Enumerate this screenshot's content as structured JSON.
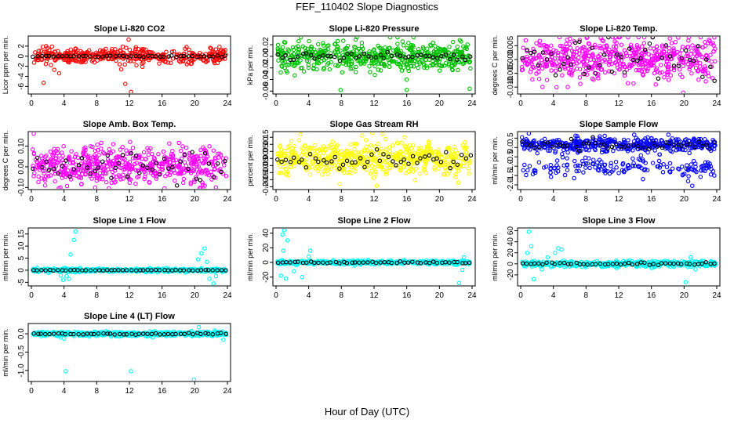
{
  "figure": {
    "title": "FEF_110402  Slope Diagnostics",
    "xlabel": "Hour of Day (UTC)"
  },
  "chart_data": [
    {
      "type": "scatter",
      "title": "Slope Li-820 CO2",
      "ylabel": "Licor ppm per min.",
      "color": "#ff0000",
      "xlim": [
        0,
        24
      ],
      "xticks": [
        0,
        4,
        8,
        12,
        16,
        20,
        24
      ],
      "ylim": [
        -7.5,
        4
      ],
      "yticks": [
        -6,
        -4,
        -2,
        0,
        2
      ],
      "ytick_labels": [
        "-6",
        "-4",
        "-2",
        "0",
        "2"
      ],
      "base_mean": 0,
      "noise": 0.7,
      "n_points": 420,
      "n_hourly": 48,
      "hourly_noise": 0.08,
      "outliers": [
        [
          1.5,
          -5.3
        ],
        [
          1.8,
          2.0
        ],
        [
          2.2,
          1.2
        ],
        [
          2.8,
          -2.7
        ],
        [
          3.4,
          -3.4
        ],
        [
          5.4,
          1.4
        ],
        [
          10.8,
          -1.6
        ],
        [
          11.0,
          -2.6
        ],
        [
          11.5,
          -5.5
        ],
        [
          11.9,
          3.3
        ],
        [
          12.2,
          -7.1
        ],
        [
          12.8,
          1.8
        ],
        [
          13.1,
          1.4
        ],
        [
          13.6,
          -2.1
        ]
      ]
    },
    {
      "type": "scatter",
      "title": "Slope Li-820 Pressure",
      "ylabel": "kPa per min.",
      "color": "#00c000",
      "xlim": [
        0,
        24
      ],
      "xticks": [
        0,
        4,
        8,
        12,
        16,
        20,
        24
      ],
      "ylim": [
        -0.065,
        0.035
      ],
      "yticks": [
        -0.06,
        -0.04,
        -0.02,
        0,
        0.02
      ],
      "ytick_labels": [
        "-0.06",
        "-0.04",
        "-0.02",
        "0.00",
        "0.02"
      ],
      "base_mean": 0,
      "noise": 0.012,
      "n_points": 560,
      "n_hourly": 48,
      "hourly_noise": 0.003,
      "outliers": [
        [
          7.9,
          -0.058
        ],
        [
          12.1,
          -0.032
        ],
        [
          16.0,
          -0.058
        ],
        [
          23.7,
          -0.056
        ],
        [
          22.5,
          0.028
        ]
      ]
    },
    {
      "type": "scatter",
      "title": "Slope Li-820 Temp.",
      "ylabel": "degrees C per min.",
      "color": "#ff00ff",
      "xlim": [
        0,
        24
      ],
      "xticks": [
        0,
        4,
        8,
        12,
        16,
        20,
        24
      ],
      "ylim": [
        -0.0125,
        0.0085
      ],
      "yticks": [
        -0.01,
        -0.005,
        0,
        0.005
      ],
      "ytick_labels": [
        "-0.010",
        "-0.005",
        "0.000",
        "0.005"
      ],
      "base_mean": 0,
      "noise": 0.004,
      "n_points": 560,
      "n_hourly": 48,
      "hourly_noise": 0.004,
      "outliers": [
        [
          23.7,
          0.008
        ],
        [
          19.9,
          -0.012
        ]
      ]
    },
    {
      "type": "scatter",
      "title": "Slope Amb. Box Temp.",
      "ylabel": "degrees C per min.",
      "color": "#ff00ff",
      "xlim": [
        0,
        24
      ],
      "xticks": [
        0,
        4,
        8,
        12,
        16,
        20,
        24
      ],
      "ylim": [
        -0.11,
        0.17
      ],
      "yticks": [
        -0.1,
        0,
        0.1
      ],
      "ytick_labels": [
        "-0.10",
        "0.00",
        "0.10"
      ],
      "base_mean": 0.01,
      "noise": 0.045,
      "n_points": 560,
      "n_hourly": 48,
      "hourly_noise": 0.045,
      "outliers": [
        [
          0.3,
          0.16
        ],
        [
          7.8,
          -0.1
        ]
      ]
    },
    {
      "type": "scatter",
      "title": "Slope Gas Stream RH",
      "ylabel": "percent per min.",
      "color": "#ffff00",
      "xlim": [
        0,
        24
      ],
      "xticks": [
        0,
        4,
        8,
        12,
        16,
        20,
        24
      ],
      "ylim": [
        -0.22,
        0.19
      ],
      "yticks": [
        -0.2,
        -0.15,
        -0.1,
        -0.05,
        0,
        0.05,
        0.1,
        0.15
      ],
      "ytick_labels": [
        "-0.20",
        "-0.15",
        "-0.10",
        "-0.05",
        "0.00",
        "0.05",
        "0.10",
        "0.15"
      ],
      "base_mean": 0,
      "noise": 0.06,
      "n_points": 560,
      "n_hourly": 48,
      "hourly_noise": 0.04,
      "outliers": [
        [
          3.0,
          0.17
        ],
        [
          7.8,
          -0.18
        ],
        [
          22.3,
          -0.17
        ]
      ]
    },
    {
      "type": "scatter",
      "title": "Slope Sample Flow",
      "ylabel": "ml/min per min.",
      "color": "#0000ff",
      "xlim": [
        0,
        24
      ],
      "xticks": [
        0,
        4,
        8,
        12,
        16,
        20,
        24
      ],
      "ylim": [
        -2.25,
        0.85
      ],
      "yticks": [
        -2,
        -1.5,
        -1,
        -0.5,
        0,
        0.5
      ],
      "ytick_labels": [
        "-2.0",
        "-1.5",
        "-1.0",
        "-0.5",
        "0.0",
        "0.5"
      ],
      "base_mean": 0.15,
      "noise": 0.18,
      "n_points": 440,
      "n_hourly": 48,
      "hourly_noise": 0.15,
      "band_mean": -1.05,
      "band_noise": 0.25,
      "n_band": 160,
      "outliers": [
        [
          20.5,
          -1.8
        ],
        [
          21.0,
          -2.05
        ],
        [
          1.0,
          0.75
        ],
        [
          23.7,
          -1.5
        ]
      ]
    },
    {
      "type": "scatter",
      "title": "Slope Line 1 Flow",
      "ylabel": "ml/min per min.",
      "color": "#00ffff",
      "xlim": [
        0,
        24
      ],
      "xticks": [
        0,
        4,
        8,
        12,
        16,
        20,
        24
      ],
      "ylim": [
        -6.5,
        17.5
      ],
      "yticks": [
        -5,
        0,
        5,
        10,
        15
      ],
      "ytick_labels": [
        "-5",
        "0",
        "5",
        "10",
        "15"
      ],
      "base_mean": 0,
      "noise": 0.35,
      "n_points": 520,
      "n_hourly": 48,
      "hourly_noise": 0.05,
      "outliers": [
        [
          3.9,
          -4.0
        ],
        [
          4.3,
          -2.5
        ],
        [
          4.8,
          6.5
        ],
        [
          5.2,
          12.5
        ],
        [
          5.4,
          16.0
        ],
        [
          4.6,
          -3.5
        ],
        [
          3.6,
          -2.2
        ],
        [
          20.4,
          4.5
        ],
        [
          20.8,
          7.0
        ],
        [
          21.2,
          9.0
        ],
        [
          21.8,
          -3.5
        ],
        [
          22.3,
          -5.5
        ],
        [
          22.6,
          -2.5
        ],
        [
          21.5,
          3.5
        ]
      ]
    },
    {
      "type": "scatter",
      "title": "Slope Line 2 Flow",
      "ylabel": "ml/min per min.",
      "color": "#00ffff",
      "xlim": [
        0,
        24
      ],
      "xticks": [
        0,
        4,
        8,
        12,
        16,
        20,
        24
      ],
      "ylim": [
        -32,
        47
      ],
      "yticks": [
        -20,
        0,
        20,
        40
      ],
      "ytick_labels": [
        "-20",
        "0",
        "20",
        "40"
      ],
      "base_mean": 0,
      "noise": 1.2,
      "n_points": 520,
      "n_hourly": 48,
      "hourly_noise": 0.6,
      "outliers": [
        [
          0.8,
          38.0
        ],
        [
          1.0,
          44.0
        ],
        [
          1.4,
          30.0
        ],
        [
          1.2,
          -22.0
        ],
        [
          0.6,
          -18.0
        ],
        [
          2.2,
          -12.0
        ],
        [
          3.2,
          -20.0
        ],
        [
          4.2,
          16.0
        ],
        [
          4.0,
          8.0
        ],
        [
          0.9,
          16.0
        ],
        [
          23.0,
          7.0
        ],
        [
          22.4,
          -28.0
        ],
        [
          22.8,
          -10.0
        ],
        [
          21.8,
          -3.0
        ]
      ]
    },
    {
      "type": "scatter",
      "title": "Slope Line 3 Flow",
      "ylabel": "ml/min per min.",
      "color": "#00ffff",
      "xlim": [
        0,
        24
      ],
      "xticks": [
        0,
        4,
        8,
        12,
        16,
        20,
        24
      ],
      "ylim": [
        -40,
        65
      ],
      "yticks": [
        -20,
        0,
        20,
        40,
        60
      ],
      "ytick_labels": [
        "-20",
        "0",
        "20",
        "40",
        "60"
      ],
      "base_mean": 0,
      "noise": 2.5,
      "n_points": 520,
      "n_hourly": 48,
      "hourly_noise": 1.0,
      "outliers": [
        [
          1.0,
          58.0
        ],
        [
          1.3,
          32.0
        ],
        [
          0.8,
          20.0
        ],
        [
          1.6,
          -28.0
        ],
        [
          3.3,
          12.0
        ],
        [
          4.2,
          20.0
        ],
        [
          4.6,
          28.0
        ],
        [
          5.0,
          26.0
        ],
        [
          2.6,
          -10.0
        ],
        [
          20.2,
          -33.0
        ],
        [
          20.8,
          12.0
        ],
        [
          21.4,
          -10.0
        ],
        [
          23.3,
          5.0
        ]
      ]
    },
    {
      "type": "scatter",
      "title": "Slope Line 4 (LT) Flow",
      "ylabel": "ml/min per min.",
      "color": "#00ffff",
      "xlim": [
        0,
        24
      ],
      "xticks": [
        0,
        4,
        8,
        12,
        16,
        20,
        24
      ],
      "ylim": [
        -1.3,
        0.28
      ],
      "yticks": [
        -1,
        -0.5,
        0
      ],
      "ytick_labels": [
        "-1.0",
        "-0.5",
        "0.0"
      ],
      "base_mean": 0,
      "noise": 0.03,
      "n_points": 560,
      "n_hourly": 48,
      "hourly_noise": 0.01,
      "outliers": [
        [
          4.2,
          -1.02
        ],
        [
          12.2,
          -1.02
        ],
        [
          19.9,
          -1.25
        ],
        [
          20.5,
          0.18
        ],
        [
          4.0,
          -0.13
        ],
        [
          3.6,
          -0.1
        ],
        [
          23.5,
          -0.16
        ]
      ]
    }
  ]
}
